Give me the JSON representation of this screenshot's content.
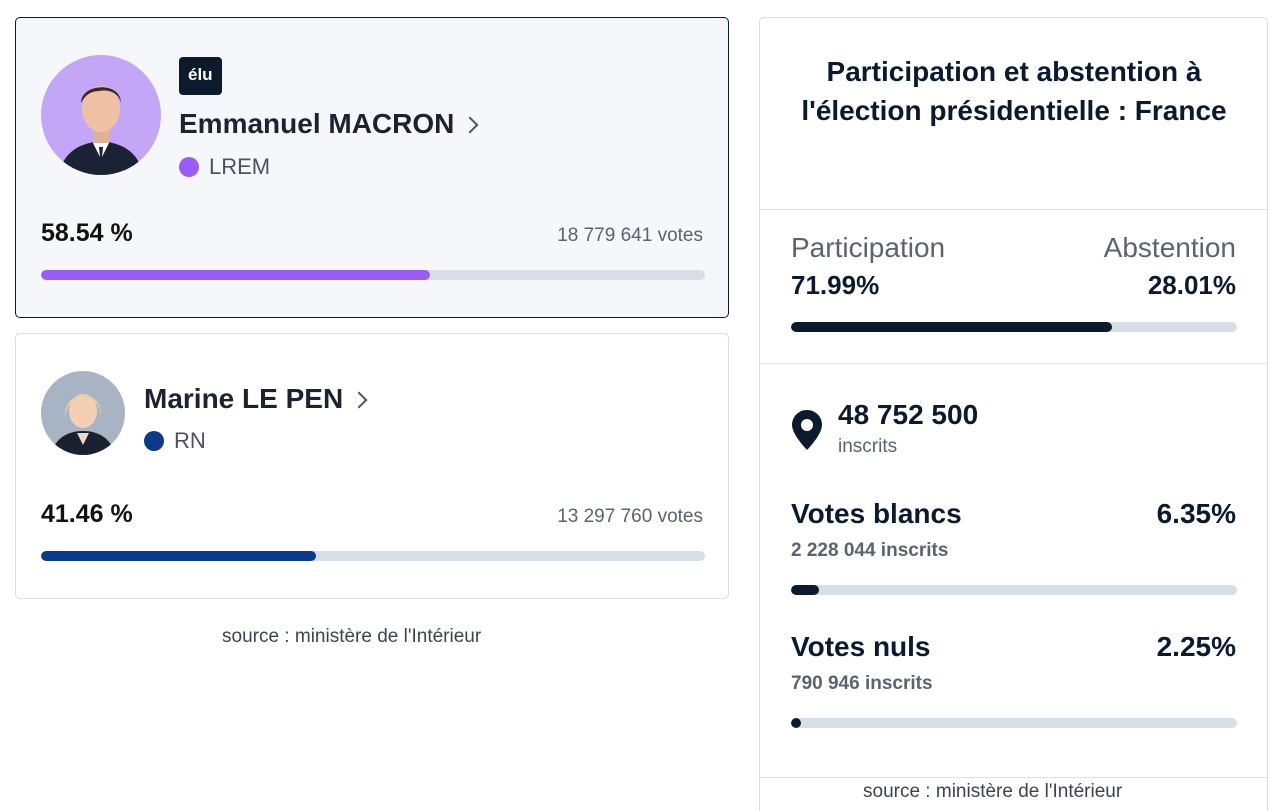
{
  "candidates": [
    {
      "badge": "élu",
      "name": "Emmanuel MACRON",
      "party": "LREM",
      "party_color": "#9b5cf5",
      "percent_label": "58.54 %",
      "percent_value": 58.54,
      "votes": "18 779 641 votes",
      "avatar_bg": "#c4a6f7"
    },
    {
      "name": "Marine LE PEN",
      "party": "RN",
      "party_color": "#0a3a8c",
      "percent_label": "41.46 %",
      "percent_value": 41.46,
      "votes": "13 297 760 votes",
      "avatar_bg": "#a8b4c4"
    }
  ],
  "left_source": "source : ministère de l'Intérieur",
  "participation_panel": {
    "title": "Participation et abstention à l'élection présidentielle : France",
    "participation_label": "Participation",
    "participation_value": "71.99%",
    "participation_fraction": 0.7199,
    "abstention_label": "Abstention",
    "abstention_value": "28.01%",
    "bar_color": "#0c1a2e",
    "registered_count": "48 752 500",
    "registered_label": "inscrits",
    "blank_title": "Votes blancs",
    "blank_percent": "6.35%",
    "blank_fraction": 0.0635,
    "blank_sub": "2 228 044 inscrits",
    "null_title": "Votes nuls",
    "null_percent": "2.25%",
    "null_fraction": 0.0225,
    "null_sub": "790 946 inscrits",
    "source": "source : ministère de l'Intérieur",
    "pin_icon": "location-pin-icon"
  }
}
